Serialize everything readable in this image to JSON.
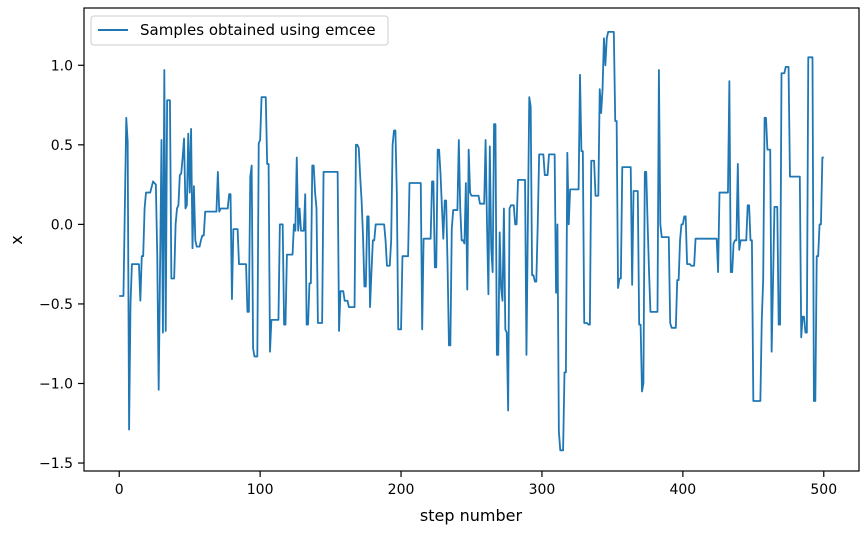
{
  "chart_data": {
    "type": "line",
    "xlabel": "step number",
    "ylabel": "x",
    "xlim": [
      -25,
      525
    ],
    "ylim": [
      -1.55,
      1.36
    ],
    "xticks": [
      0,
      100,
      200,
      300,
      400,
      500
    ],
    "yticks": [
      -1.5,
      -1.0,
      -0.5,
      0.0,
      0.5,
      1.0
    ],
    "xtick_labels": [
      "0",
      "100",
      "200",
      "300",
      "400",
      "500"
    ],
    "ytick_labels": [
      "−1.5",
      "−1.0",
      "−0.5",
      "0.0",
      "0.5",
      "1.0"
    ],
    "grid": false,
    "legend_position": "top-left",
    "series": [
      {
        "name": "Samples obtained using emcee",
        "color": "#1f77b4",
        "x": [
          0,
          3,
          5,
          6,
          7,
          8,
          9,
          10,
          11,
          12,
          14,
          15,
          16,
          17,
          18,
          19,
          20,
          21,
          22,
          24,
          26,
          27,
          28,
          30,
          31,
          32,
          33,
          34,
          35,
          36,
          37,
          38,
          39,
          40,
          41,
          42,
          43,
          44,
          45,
          46,
          47,
          48,
          49,
          50,
          51,
          52,
          53,
          54,
          55,
          56,
          57,
          58,
          59,
          60,
          61,
          62,
          63,
          64,
          65,
          66,
          67,
          68,
          69,
          70,
          71,
          72,
          73,
          74,
          75,
          76,
          77,
          78,
          79,
          80,
          81,
          82,
          83,
          84,
          85,
          86,
          87,
          88,
          89,
          90,
          91,
          92,
          93,
          94,
          95,
          96,
          97,
          98,
          99,
          100,
          101,
          102,
          103,
          104,
          105,
          106,
          107,
          108,
          109,
          110,
          111,
          112,
          113,
          114,
          115,
          116,
          117,
          118,
          119,
          120,
          121,
          122,
          123,
          124,
          125,
          126,
          127,
          128,
          129,
          130,
          131,
          132,
          133,
          134,
          135,
          136,
          137,
          138,
          139,
          140,
          141,
          142,
          143,
          144,
          145,
          146,
          147,
          148,
          149,
          150,
          151,
          152,
          153,
          154,
          155,
          156,
          157,
          158,
          159,
          160,
          161,
          162,
          163,
          164,
          165,
          166,
          167,
          168,
          169,
          170,
          171,
          172,
          173,
          174,
          175,
          176,
          177,
          178,
          179,
          180,
          181,
          182,
          183,
          184,
          185,
          186,
          187,
          188,
          189,
          190,
          191,
          192,
          193,
          194,
          195,
          196,
          197,
          198,
          199,
          200,
          201,
          202,
          203,
          204,
          205,
          206,
          207,
          208,
          209,
          210,
          211,
          212,
          213,
          214,
          215,
          216,
          217,
          218,
          219,
          220,
          221,
          222,
          223,
          224,
          225,
          226,
          227,
          228,
          229,
          230,
          231,
          232,
          233,
          234,
          235,
          236,
          237,
          238,
          239,
          240,
          241,
          242,
          243,
          244,
          245,
          246,
          247,
          248,
          249,
          250,
          251,
          252,
          253,
          254,
          255,
          256,
          257,
          258,
          259,
          260,
          261,
          262,
          263,
          264,
          265,
          266,
          267,
          268,
          269,
          270,
          271,
          272,
          273,
          274,
          275,
          276,
          277,
          278,
          279,
          280,
          281,
          282,
          283,
          284,
          285,
          286,
          287,
          288,
          289,
          290,
          291,
          292,
          293,
          294,
          295,
          296,
          297,
          298,
          299,
          300,
          301,
          302,
          303,
          304,
          305,
          306,
          307,
          308,
          309,
          310,
          311,
          312,
          313,
          314,
          315,
          316,
          317,
          318,
          319,
          320,
          321,
          322,
          323,
          324,
          325,
          326,
          327,
          328,
          329,
          330,
          331,
          332,
          333,
          334,
          335,
          336,
          337,
          338,
          339,
          340,
          341,
          342,
          343,
          344,
          345,
          346,
          347,
          348,
          349,
          350,
          351,
          352,
          353,
          354,
          355,
          356,
          357,
          358,
          359,
          360,
          361,
          362,
          363,
          364,
          365,
          366,
          367,
          368,
          369,
          370,
          371,
          372,
          373,
          374,
          375,
          376,
          377,
          378,
          379,
          380,
          381,
          382,
          383,
          384,
          385,
          386,
          387,
          388,
          389,
          390,
          391,
          392,
          393,
          394,
          395,
          396,
          397,
          398,
          399,
          400,
          401,
          402,
          403,
          404,
          405,
          406,
          407,
          408,
          409,
          410,
          411,
          412,
          413,
          414,
          415,
          416,
          417,
          418,
          419,
          420,
          421,
          422,
          423,
          424,
          425,
          426,
          427,
          428,
          429,
          430,
          431,
          432,
          433,
          434,
          435,
          436,
          437,
          438,
          439,
          440,
          441,
          442,
          443,
          444,
          445,
          446,
          447,
          448,
          449,
          450,
          451,
          452,
          453,
          454,
          455,
          456,
          457,
          458,
          459,
          460,
          461,
          462,
          463,
          464,
          465,
          466,
          467,
          468,
          469,
          470,
          471,
          472,
          473,
          474,
          475,
          476,
          477,
          478,
          479,
          480,
          481,
          482,
          483,
          484,
          485,
          486,
          487,
          488,
          489,
          490,
          491,
          492,
          493,
          494,
          495,
          496,
          497,
          498,
          499,
          500
        ],
        "y": [
          -0.45,
          -0.45,
          0.67,
          0.52,
          -1.29,
          -0.5,
          -0.25,
          -0.25,
          -0.25,
          -0.25,
          -0.25,
          -0.48,
          -0.2,
          -0.2,
          0.1,
          0.2,
          0.2,
          0.2,
          0.2,
          0.27,
          0.25,
          -0.2,
          -1.04,
          0.53,
          -0.68,
          0.97,
          -0.67,
          0.78,
          0.78,
          0.78,
          -0.34,
          -0.34,
          -0.34,
          0.0,
          0.1,
          0.12,
          0.31,
          0.32,
          0.42,
          0.54,
          0.1,
          0.12,
          0.57,
          0.2,
          0.6,
          -0.15,
          0.24,
          -0.1,
          -0.14,
          -0.14,
          -0.14,
          -0.1,
          -0.07,
          -0.07,
          0.08,
          0.08,
          0.08,
          0.08,
          0.08,
          0.08,
          0.08,
          0.08,
          0.08,
          0.33,
          0.08,
          0.1,
          0.1,
          0.1,
          0.1,
          0.1,
          0.1,
          0.19,
          0.19,
          -0.47,
          -0.03,
          -0.03,
          -0.03,
          -0.03,
          -0.25,
          -0.25,
          -0.25,
          -0.25,
          -0.25,
          -0.25,
          -0.55,
          -0.55,
          0.3,
          0.37,
          -0.78,
          -0.83,
          -0.83,
          -0.83,
          0.51,
          0.53,
          0.8,
          0.8,
          0.8,
          0.8,
          0.38,
          0.38,
          -0.8,
          -0.6,
          -0.6,
          -0.6,
          -0.6,
          -0.6,
          -0.6,
          0.0,
          0.0,
          0.0,
          -0.63,
          -0.63,
          -0.19,
          -0.19,
          -0.19,
          -0.19,
          -0.19,
          0.0,
          -0.04,
          0.42,
          -0.04,
          0.1,
          -0.04,
          -0.04,
          -0.04,
          0.19,
          -0.63,
          -0.63,
          -0.37,
          -0.37,
          0.37,
          0.37,
          0.2,
          0.1,
          -0.62,
          -0.62,
          -0.62,
          -0.62,
          0.33,
          0.33,
          0.33,
          0.33,
          0.33,
          0.33,
          0.33,
          0.33,
          0.33,
          0.33,
          0.33,
          -0.67,
          -0.42,
          -0.42,
          -0.42,
          -0.48,
          -0.48,
          -0.48,
          -0.52,
          -0.52,
          -0.52,
          -0.52,
          -0.52,
          0.5,
          0.5,
          0.48,
          0.3,
          0.15,
          -0.07,
          -0.39,
          -0.39,
          0.05,
          0.05,
          -0.52,
          -0.3,
          -0.1,
          -0.1,
          0.0,
          0.0,
          0.0,
          0.0,
          0.0,
          0.0,
          0.0,
          -0.1,
          -0.26,
          -0.26,
          -0.26,
          -0.1,
          0.5,
          0.59,
          0.59,
          0.2,
          -0.66,
          -0.66,
          -0.66,
          -0.2,
          -0.2,
          -0.2,
          -0.2,
          -0.2,
          0.26,
          0.26,
          0.26,
          0.26,
          0.26,
          0.26,
          0.26,
          0.26,
          0.26,
          -0.66,
          -0.09,
          -0.09,
          -0.09,
          -0.09,
          -0.09,
          -0.09,
          0.27,
          0.27,
          -0.27,
          -0.27,
          0.47,
          0.47,
          0.32,
          0.11,
          -0.09,
          0.15,
          0.15,
          -0.25,
          -0.76,
          -0.76,
          -0.03,
          0.09,
          0.09,
          0.09,
          0.09,
          0.53,
          0.1,
          -0.1,
          -0.1,
          -0.12,
          0.26,
          -0.41,
          0.47,
          0.2,
          0.18,
          0.18,
          0.18,
          0.18,
          0.18,
          0.18,
          0.13,
          0.13,
          0.13,
          0.13,
          0.53,
          0.0,
          -0.44,
          0.49,
          -0.15,
          -0.3,
          0.63,
          0.63,
          -0.82,
          -0.82,
          -0.05,
          -0.4,
          -0.48,
          0.1,
          -0.66,
          -0.68,
          -1.17,
          0.1,
          0.12,
          0.12,
          0.12,
          0.0,
          0.0,
          0.28,
          0.28,
          0.28,
          0.28,
          0.28,
          0.28,
          -0.82,
          0.0,
          0.8,
          0.74,
          -0.32,
          -0.32,
          -0.36,
          -0.36,
          0.0,
          0.44,
          0.44,
          0.44,
          0.44,
          0.31,
          0.31,
          0.31,
          0.44,
          0.44,
          0.44,
          0.44,
          0.44,
          -0.43,
          0.0,
          -1.3,
          -1.42,
          -1.42,
          -1.42,
          -0.93,
          -0.93,
          0.45,
          0.0,
          0.22,
          0.22,
          0.22,
          0.22,
          0.22,
          0.22,
          0.22,
          0.94,
          0.46,
          0.46,
          -0.62,
          -0.62,
          -0.62,
          -0.63,
          -0.63,
          0.4,
          0.4,
          0.4,
          0.18,
          0.18,
          0.18,
          0.85,
          0.7,
          0.85,
          1.17,
          1.0,
          1.17,
          1.21,
          1.21,
          1.21,
          1.21,
          1.21,
          0.65,
          0.65,
          -0.4,
          -0.34,
          -0.34,
          0.36,
          0.36,
          0.36,
          0.36,
          0.36,
          0.36,
          0.36,
          -0.38,
          0.21,
          0.21,
          0.21,
          0.21,
          -0.63,
          -0.63,
          -1.05,
          -1.0,
          0.33,
          0.33,
          0.0,
          -0.3,
          -0.55,
          -0.55,
          -0.55,
          -0.55,
          -0.55,
          -0.55,
          0.97,
          0.0,
          -0.08,
          -0.08,
          -0.08,
          -0.08,
          -0.08,
          -0.08,
          -0.62,
          -0.65,
          -0.65,
          -0.65,
          -0.65,
          -0.35,
          -0.35,
          -0.1,
          0.0,
          0.0,
          0.05,
          0.05,
          -0.25,
          -0.25,
          -0.25,
          -0.26,
          -0.26,
          -0.26,
          -0.09,
          -0.09,
          -0.09,
          -0.09,
          -0.09,
          -0.09,
          -0.09,
          -0.09,
          -0.09,
          -0.09,
          -0.09,
          -0.09,
          -0.09,
          -0.09,
          -0.09,
          -0.09,
          -0.3,
          0.2,
          0.2,
          0.2,
          0.2,
          0.2,
          0.2,
          0.2,
          0.9,
          -0.3,
          -0.3,
          -0.12,
          -0.1,
          -0.1,
          0.38,
          -0.16,
          -0.1,
          -0.1,
          -0.1,
          -0.1,
          -0.1,
          0.12,
          0.12,
          -0.1,
          -0.1,
          -1.11,
          -1.11,
          -1.11,
          -1.11,
          -1.11,
          -1.11,
          -0.6,
          -0.35,
          0.67,
          0.67,
          0.47,
          0.47,
          0.47,
          -0.8,
          -0.36,
          0.11,
          0.11,
          0.11,
          -0.63,
          -0.63,
          0.95,
          0.95,
          0.95,
          0.99,
          0.99,
          0.99,
          0.3,
          0.3,
          0.3,
          0.3,
          0.3,
          0.3,
          0.3,
          0.3,
          -0.71,
          -0.58,
          -0.58,
          -0.68,
          -0.68,
          1.05,
          1.05,
          1.05,
          1.05,
          -1.11,
          -1.11,
          -0.2,
          -0.2,
          0.0,
          0.0,
          0.42,
          0.42
        ]
      }
    ]
  }
}
